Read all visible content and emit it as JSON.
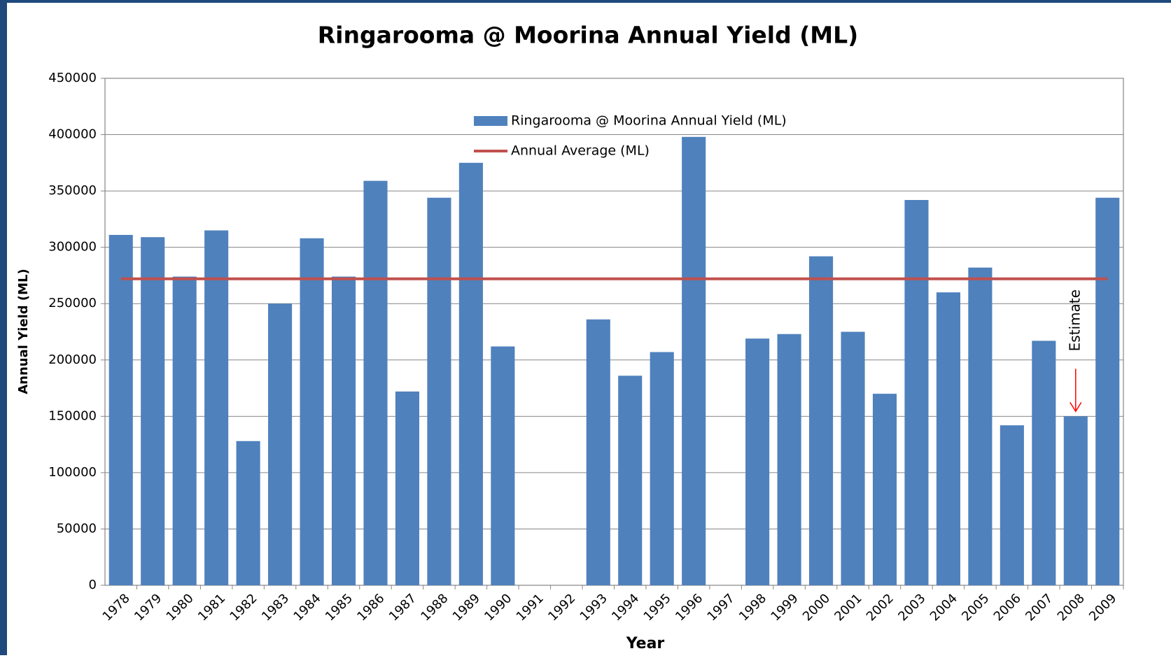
{
  "chart_data": {
    "type": "bar",
    "title": "Ringarooma @ Moorina Annual Yield (ML)",
    "x_label": "Year",
    "y_label": "Annual Yield (ML)",
    "categories": [
      "1978",
      "1979",
      "1980",
      "1981",
      "1982",
      "1983",
      "1984",
      "1985",
      "1986",
      "1987",
      "1988",
      "1989",
      "1990",
      "1991",
      "1992",
      "1993",
      "1994",
      "1995",
      "1996",
      "1997",
      "1998",
      "1999",
      "2000",
      "2001",
      "2002",
      "2003",
      "2004",
      "2005",
      "2006",
      "2007",
      "2008",
      "2009"
    ],
    "series": [
      {
        "name": "Ringarooma @ Moorina Annual Yield (ML)",
        "type": "bar",
        "color": "#4f81bd",
        "values": [
          311000,
          309000,
          274000,
          315000,
          128000,
          250000,
          308000,
          274000,
          359000,
          172000,
          344000,
          375000,
          212000,
          null,
          null,
          236000,
          186000,
          207000,
          398000,
          null,
          219000,
          223000,
          292000,
          225000,
          170000,
          342000,
          260000,
          282000,
          142000,
          217000,
          150000,
          344000
        ]
      },
      {
        "name": "Annual Average (ML)",
        "type": "line",
        "color": "#c0504d",
        "value": 272000
      }
    ],
    "ylim": [
      0,
      450000
    ],
    "yticks": [
      0,
      50000,
      100000,
      150000,
      200000,
      250000,
      300000,
      350000,
      400000,
      450000
    ],
    "grid": true,
    "legend": "top",
    "annotations": [
      {
        "text": "Estimate",
        "x": "2008",
        "color": "#ff0000"
      }
    ]
  }
}
